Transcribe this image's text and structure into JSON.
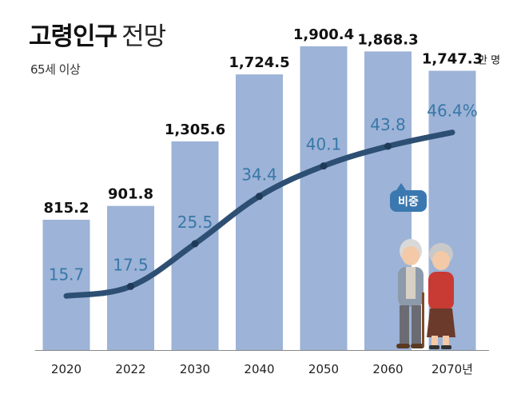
{
  "header": {
    "title_main": "고령인구",
    "title_sub": "전망",
    "subtitle": "65세 이상"
  },
  "colors": {
    "bar": "#9db3d7",
    "line": "#2d4f73",
    "ratio_text": "#3878a8",
    "value_text": "#111111",
    "badge": "#3b78b0"
  },
  "chart_data": {
    "type": "bar",
    "categories": [
      "2020",
      "2022",
      "2030",
      "2040",
      "2050",
      "2060",
      "2070년"
    ],
    "series": [
      {
        "values": [
          815.2,
          901.8,
          1305.6,
          1724.5,
          1900.4,
          1868.3,
          1747.3
        ],
        "labels": [
          "815.2",
          "901.8",
          "1,305.6",
          "1,724.5",
          "1,900.4",
          "1,868.3",
          "1,747.3"
        ],
        "unit": "만 명"
      },
      {
        "name": "비중",
        "type": "line",
        "values": [
          15.7,
          17.5,
          25.5,
          34.4,
          40.1,
          43.8,
          46.4
        ],
        "labels": [
          "15.7",
          "17.5",
          "25.5",
          "34.4",
          "40.1",
          "43.8",
          "46.4%"
        ]
      }
    ],
    "bar_ylim": [
      0,
      2000
    ],
    "line_ylim": [
      0,
      60
    ],
    "annotation": "비중"
  },
  "illustration": {
    "name": "elderly-couple-illustration"
  }
}
